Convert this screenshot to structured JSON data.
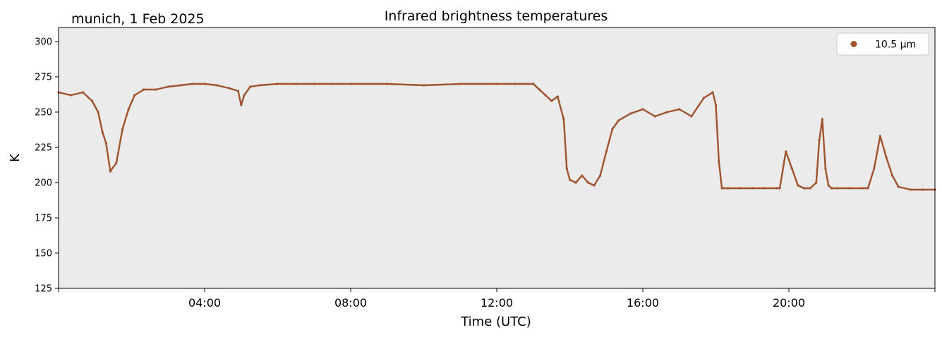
{
  "chart_data": {
    "type": "scatter",
    "title": "Infrared brightness temperatures",
    "subtitle": "munich, 1 Feb 2025",
    "xlabel": "Time (UTC)",
    "ylabel": "K",
    "xlim": [
      "00:00",
      "24:00"
    ],
    "ylim": [
      125,
      310
    ],
    "x_ticks": [
      "04:00",
      "08:00",
      "12:00",
      "16:00",
      "20:00"
    ],
    "y_ticks": [
      125,
      150,
      175,
      200,
      225,
      250,
      275,
      300
    ],
    "grid": false,
    "legend_position": "top-right",
    "plot_background": "#ebebeb",
    "series": [
      {
        "name": "10.5 µm",
        "color": "#a0522d",
        "x": [
          "00:00",
          "00:20",
          "00:40",
          "00:55",
          "01:05",
          "01:12",
          "01:18",
          "01:25",
          "01:35",
          "01:45",
          "01:55",
          "02:05",
          "02:20",
          "02:40",
          "03:00",
          "03:20",
          "03:40",
          "04:00",
          "04:20",
          "04:40",
          "04:55",
          "05:00",
          "05:05",
          "05:15",
          "05:30",
          "06:00",
          "06:30",
          "07:00",
          "07:30",
          "08:00",
          "09:00",
          "10:00",
          "11:00",
          "12:00",
          "12:30",
          "13:00",
          "13:10",
          "13:20",
          "13:30",
          "13:40",
          "13:50",
          "13:55",
          "14:00",
          "14:10",
          "14:20",
          "14:30",
          "14:40",
          "14:50",
          "15:00",
          "15:10",
          "15:20",
          "15:40",
          "16:00",
          "16:20",
          "16:40",
          "17:00",
          "17:20",
          "17:40",
          "17:55",
          "18:00",
          "18:05",
          "18:10",
          "18:20",
          "18:40",
          "19:00",
          "19:20",
          "19:40",
          "19:45",
          "19:55",
          "20:05",
          "20:15",
          "20:25",
          "20:35",
          "20:45",
          "20:50",
          "20:55",
          "21:00",
          "21:05",
          "21:10",
          "21:20",
          "21:40",
          "22:00",
          "22:10",
          "22:20",
          "22:30",
          "22:40",
          "22:50",
          "23:00",
          "23:20",
          "23:40",
          "24:00"
        ],
        "y": [
          264,
          262,
          264,
          258,
          250,
          236,
          228,
          208,
          214,
          238,
          252,
          262,
          266,
          266,
          268,
          269,
          270,
          270,
          269,
          267,
          265,
          255,
          262,
          268,
          269,
          270,
          270,
          270,
          270,
          270,
          270,
          269,
          270,
          270,
          270,
          270,
          266,
          262,
          258,
          261,
          245,
          210,
          202,
          200,
          205,
          200,
          198,
          205,
          222,
          238,
          244,
          249,
          252,
          247,
          250,
          252,
          247,
          260,
          264,
          255,
          215,
          196,
          196,
          196,
          196,
          196,
          196,
          196,
          222,
          210,
          198,
          196,
          196,
          200,
          230,
          245,
          210,
          198,
          196,
          196,
          196,
          196,
          196,
          210,
          233,
          218,
          205,
          197,
          195,
          195,
          195
        ]
      }
    ]
  }
}
